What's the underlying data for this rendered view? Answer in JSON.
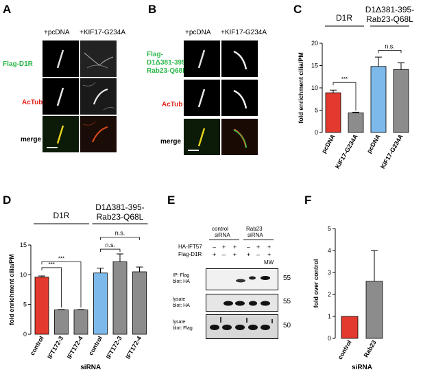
{
  "panels": {
    "A": "A",
    "B": "B",
    "C": "C",
    "D": "D",
    "E": "E",
    "F": "F"
  },
  "panelA": {
    "col1": "+pcDNA",
    "col2": "+KIF17-G234A",
    "row1": "Flag-D1R",
    "row2": "AcTub",
    "row3": "merge"
  },
  "panelB": {
    "col1": "+pcDNA",
    "col2": "+KIF17-G234A",
    "row1_l1": "Flag-",
    "row1_l2": "D1Δ381-395-",
    "row1_l3": "Rab23-Q68L",
    "row2": "AcTub",
    "row3": "merge"
  },
  "colors": {
    "red": "#e23a2e",
    "blue": "#7db9ea",
    "gray": "#8c8c8c",
    "green": "#2db84a",
    "labelred": "#e2231a"
  },
  "chart_data": [
    {
      "id": "C",
      "type": "bar",
      "group_labels": [
        "D1R",
        "D1Δ381-395-",
        "Rab23-Q68L"
      ],
      "categories": [
        "pcDNA",
        "KIF17-G234A",
        "pcDNA",
        "KIF17-G234A"
      ],
      "values": [
        8.9,
        4.4,
        14.8,
        14.1
      ],
      "errors": [
        0.6,
        0.15,
        2.1,
        1.5
      ],
      "bar_colors": [
        "red",
        "gray",
        "blue",
        "gray"
      ],
      "ylabel": "fold enrichment cilia/PM",
      "ylim": [
        0,
        20
      ],
      "yticks": [
        "0",
        "5",
        "10",
        "15",
        "20"
      ],
      "significance": [
        {
          "pair": [
            0,
            1
          ],
          "label": "***"
        },
        {
          "pair": [
            2,
            3
          ],
          "label": "n.s."
        }
      ]
    },
    {
      "id": "D",
      "type": "bar",
      "group_labels": [
        "D1R",
        "D1Δ381-395-",
        "Rab23-Q68L"
      ],
      "categories": [
        "control",
        "IFT172-3",
        "IFT172-4",
        "control",
        "IFT172-3",
        "IFT172-4"
      ],
      "values": [
        9.6,
        4.1,
        4.1,
        10.3,
        12.2,
        10.5
      ],
      "errors": [
        0.2,
        0.05,
        0.05,
        0.8,
        1.3,
        0.8
      ],
      "bar_colors": [
        "red",
        "gray",
        "gray",
        "blue",
        "gray",
        "gray"
      ],
      "ylabel": "fold enrichment cilia/PM",
      "xlabel": "siRNA",
      "ylim": [
        0,
        15
      ],
      "yticks": [
        "0",
        "5",
        "10",
        "15"
      ],
      "significance": [
        {
          "pair": [
            0,
            1
          ],
          "label": "***"
        },
        {
          "pair": [
            0,
            2
          ],
          "label": "***"
        },
        {
          "pair": [
            3,
            4
          ],
          "label": "n.s."
        },
        {
          "pair": [
            3,
            5
          ],
          "label": "n.s."
        }
      ]
    },
    {
      "id": "F",
      "type": "bar",
      "categories": [
        "control",
        "Rab23"
      ],
      "values": [
        1.0,
        2.6
      ],
      "errors": [
        0,
        1.4
      ],
      "bar_colors": [
        "red",
        "gray"
      ],
      "ylabel": "fold over control",
      "xlabel": "siRNA",
      "ylim": [
        0,
        5
      ],
      "yticks": [
        "0",
        "1",
        "2",
        "3",
        "4",
        "5"
      ]
    }
  ],
  "panelE": {
    "group1_l1": "control",
    "group1_l2": "siRNA",
    "group2_l1": "Rab23",
    "group2_l2": "siRNA",
    "row1_label": "HA-IFT57",
    "row2_label": "Flag-D1R",
    "row1_signs": [
      "–",
      "+",
      "+",
      "–",
      "+",
      "+"
    ],
    "row2_signs": [
      "+",
      "–",
      "+",
      "+",
      "–",
      "+"
    ],
    "mw_label": "MW",
    "blot1_l1": "IP: Flag",
    "blot1_l2": "blot: HA",
    "blot1_mw": "55",
    "blot2_l1": "lysate",
    "blot2_l2": "blot: HA",
    "blot2_mw": "55",
    "blot3_l1": "lysate",
    "blot3_l2": "blot: Flag",
    "blot3_mw": "50"
  }
}
